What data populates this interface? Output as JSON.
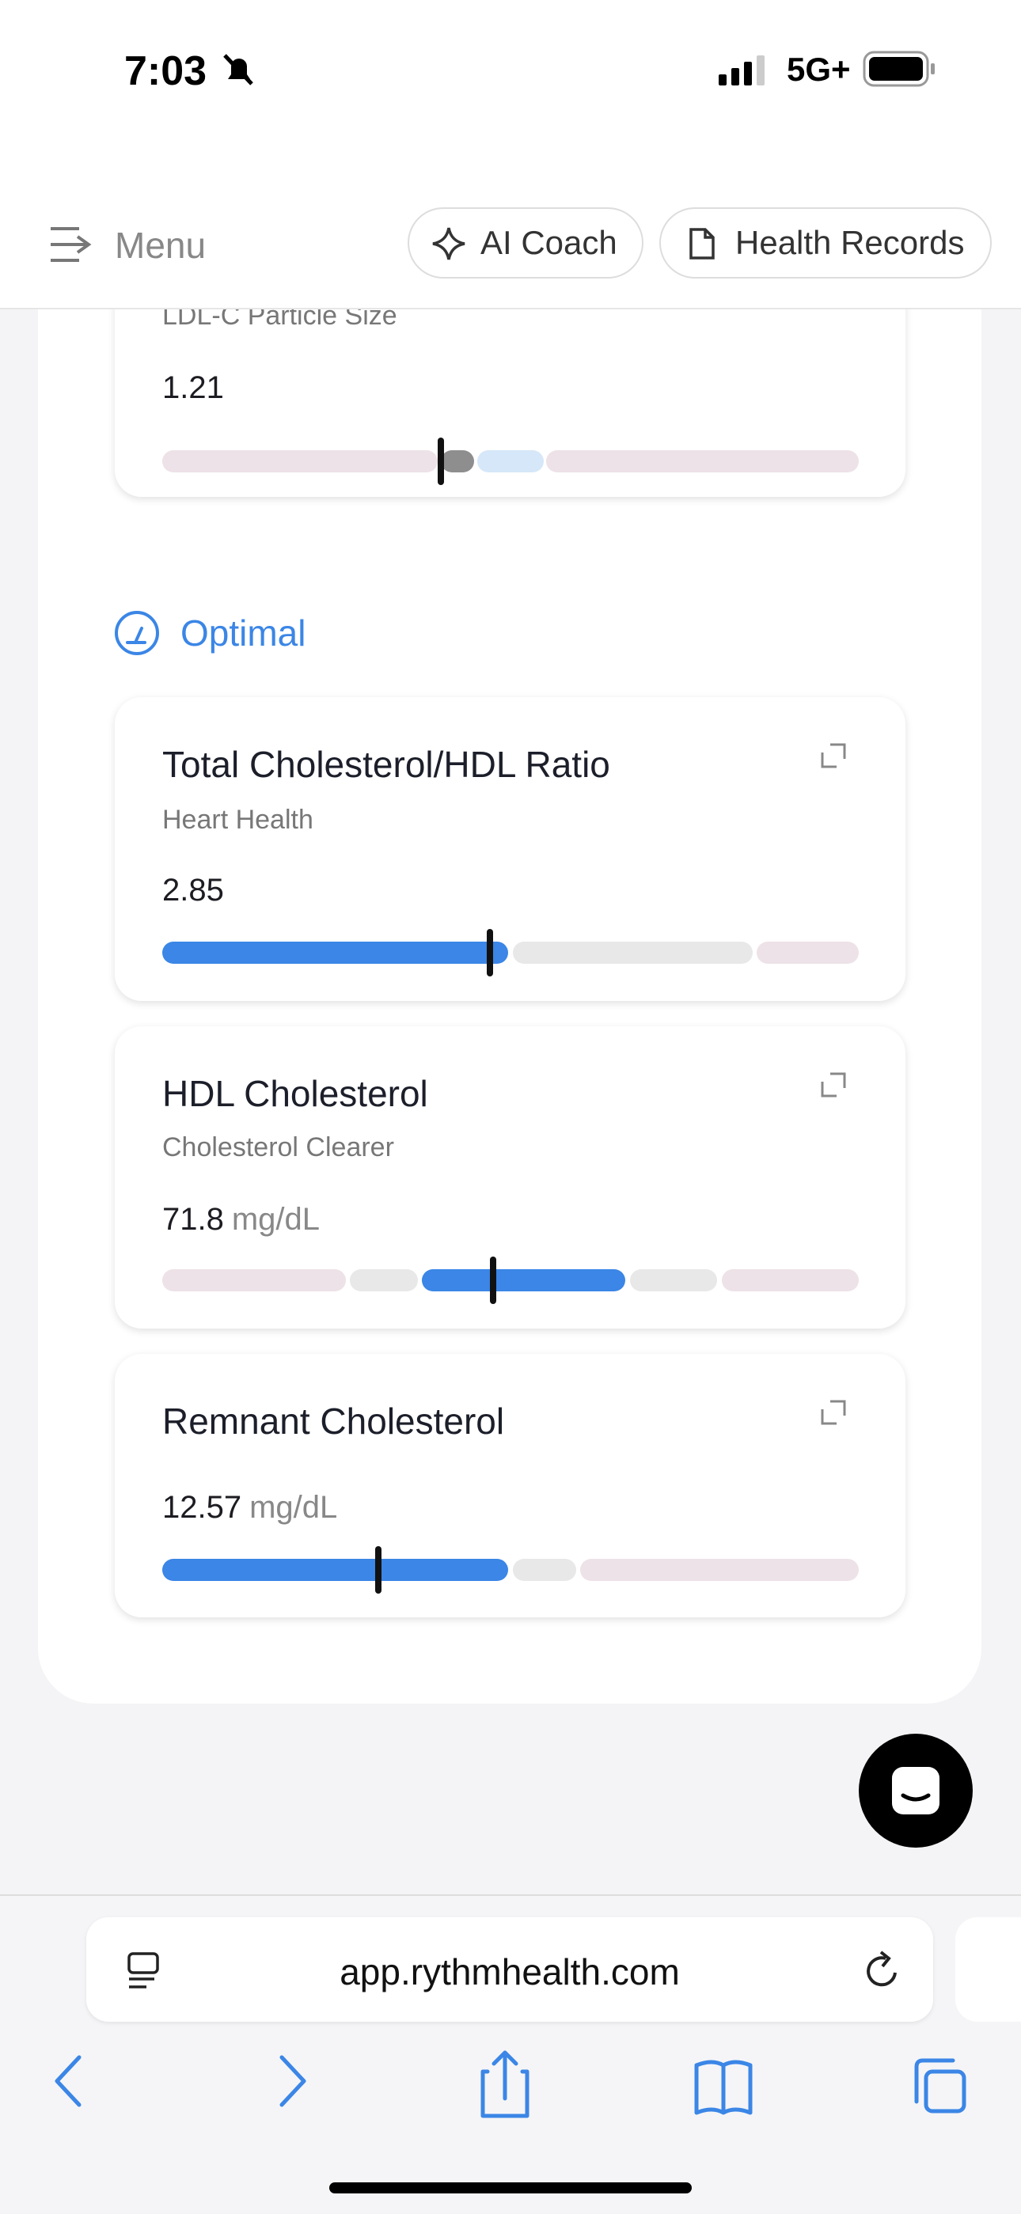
{
  "status_bar": {
    "time": "7:03",
    "network": "5G+"
  },
  "nav": {
    "menu": "Menu",
    "buttons": [
      "AI Coach",
      "Health Records"
    ]
  },
  "top_card": {
    "title": "LDL-C Particle Size",
    "value": 1.21
  },
  "section": {
    "label": "Optimal"
  },
  "cards": [
    {
      "title": "Total Cholesterol/HDL Ratio",
      "subtitle": "Heart Health",
      "value": 2.85
    },
    {
      "title": "HDL Cholesterol",
      "subtitle": "Cholesterol Clearer",
      "value": 71.8,
      "unit": "mg/dL"
    },
    {
      "title": "Remnant Cholesterol",
      "value": 12.57,
      "unit": "mg/dL"
    }
  ],
  "browser": {
    "url": "app.rythmhealth.com"
  }
}
